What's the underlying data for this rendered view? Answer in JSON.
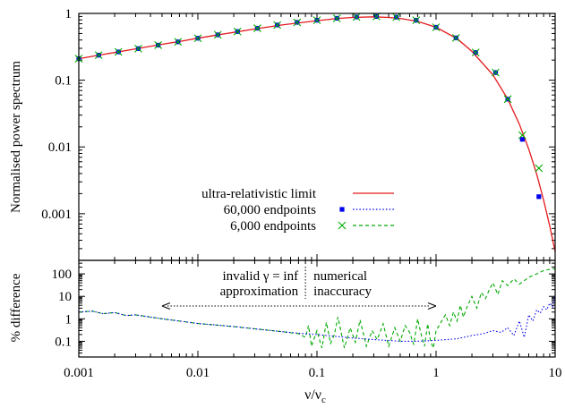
{
  "chart_data": [
    {
      "type": "line",
      "ylabel": "Normalised power spectrum",
      "xscale": "log",
      "yscale": "log",
      "xlim": [
        0.001,
        10
      ],
      "ylim": [
        0.0002,
        1
      ],
      "x_ticks": [
        "0.001",
        "0.01",
        "0.1",
        "1",
        "10"
      ],
      "y_ticks": [
        {
          "value": 1,
          "label": "1"
        },
        {
          "value": 0.1,
          "label": "0.1"
        },
        {
          "value": 0.01,
          "label": "0.01"
        },
        {
          "value": 0.001,
          "label": "0.001"
        }
      ],
      "legend_position": "center-left",
      "series": [
        {
          "name": "ultra-relativistic limit",
          "color": "#e41a1c",
          "style": "line",
          "x": [
            0.001,
            0.0015,
            0.002,
            0.003,
            0.005,
            0.007,
            0.01,
            0.015,
            0.02,
            0.03,
            0.05,
            0.07,
            0.1,
            0.15,
            0.2,
            0.3,
            0.4,
            0.5,
            0.7,
            1,
            1.5,
            2,
            3,
            4,
            5,
            6,
            7,
            8,
            9,
            10
          ],
          "y": [
            0.21,
            0.238,
            0.26,
            0.295,
            0.345,
            0.38,
            0.425,
            0.48,
            0.52,
            0.585,
            0.67,
            0.72,
            0.78,
            0.84,
            0.87,
            0.89,
            0.87,
            0.84,
            0.76,
            0.62,
            0.42,
            0.27,
            0.12,
            0.052,
            0.022,
            0.0093,
            0.0039,
            0.0016,
            0.00066,
            0.00027
          ]
        },
        {
          "name": "60,000 endpoints",
          "color": "#0000ee",
          "style": "dotted",
          "marker": "square",
          "x": [
            0.001,
            0.00147,
            0.00215,
            0.00316,
            0.00464,
            0.00681,
            0.01,
            0.0147,
            0.0215,
            0.0316,
            0.0464,
            0.0681,
            0.1,
            0.147,
            0.215,
            0.316,
            0.464,
            0.681,
            1,
            1.47,
            2.15,
            3.16,
            4.0,
            5.3,
            7.3
          ],
          "y": [
            0.21,
            0.237,
            0.265,
            0.297,
            0.335,
            0.375,
            0.425,
            0.478,
            0.535,
            0.6,
            0.67,
            0.735,
            0.79,
            0.845,
            0.885,
            0.9,
            0.88,
            0.79,
            0.62,
            0.43,
            0.26,
            0.13,
            0.052,
            0.013,
            0.0018
          ]
        },
        {
          "name": "6,000 endpoints",
          "color": "#00aa00",
          "style": "dashed",
          "marker": "cross",
          "x": [
            0.001,
            0.00147,
            0.00215,
            0.00316,
            0.00464,
            0.00681,
            0.01,
            0.0147,
            0.0215,
            0.0316,
            0.0464,
            0.0681,
            0.1,
            0.147,
            0.215,
            0.316,
            0.464,
            0.681,
            1,
            1.47,
            2.15,
            3.16,
            4.0,
            5.3,
            7.3
          ],
          "y": [
            0.21,
            0.237,
            0.265,
            0.297,
            0.335,
            0.375,
            0.425,
            0.478,
            0.535,
            0.6,
            0.67,
            0.735,
            0.79,
            0.845,
            0.885,
            0.9,
            0.88,
            0.79,
            0.62,
            0.43,
            0.26,
            0.13,
            0.052,
            0.015,
            0.0048
          ]
        }
      ]
    },
    {
      "type": "line",
      "ylabel": "% difference",
      "xlabel": "ν/νc",
      "xscale": "log",
      "yscale": "log",
      "xlim": [
        0.001,
        10
      ],
      "ylim": [
        0.02,
        400
      ],
      "x_ticks": [
        "0.001",
        "0.01",
        "0.1",
        "1",
        "10"
      ],
      "y_ticks": [
        {
          "value": 100,
          "label": "100"
        },
        {
          "value": 10,
          "label": "10"
        },
        {
          "value": 1,
          "label": "1"
        },
        {
          "value": 0.1,
          "label": "0.1"
        }
      ],
      "annotations": {
        "left": [
          "invalid γ = inf",
          "approximation"
        ],
        "right": [
          "numerical",
          "inaccuracy"
        ],
        "divider_x": 0.08,
        "arrow_from_x": 0.005,
        "arrow_to_x": 1
      },
      "series": [
        {
          "name": "60,000 endpoints",
          "color": "#0000ee",
          "style": "dotted",
          "x": [
            0.001,
            0.0013,
            0.0016,
            0.002,
            0.0025,
            0.003,
            0.004,
            0.005,
            0.007,
            0.01,
            0.015,
            0.02,
            0.03,
            0.05,
            0.07,
            0.1,
            0.15,
            0.2,
            0.3,
            0.5,
            0.7,
            1,
            1.5,
            2,
            2.5,
            3,
            3.5,
            4,
            4.5,
            5,
            5.5,
            6,
            6.5,
            7,
            7.5,
            8,
            8.5,
            9,
            9.5,
            10
          ],
          "y": [
            2.0,
            2.2,
            1.7,
            1.9,
            1.4,
            1.5,
            1.2,
            1.0,
            0.8,
            0.62,
            0.52,
            0.45,
            0.36,
            0.27,
            0.23,
            0.2,
            0.16,
            0.14,
            0.12,
            0.1,
            0.1,
            0.11,
            0.13,
            0.18,
            0.22,
            0.3,
            0.25,
            0.4,
            0.18,
            0.8,
            0.15,
            1.5,
            0.8,
            2.5,
            1.8,
            3.5,
            2.5,
            5,
            3.5,
            12
          ]
        },
        {
          "name": "6,000 endpoints",
          "color": "#00aa00",
          "style": "dashed",
          "x": [
            0.001,
            0.0013,
            0.0016,
            0.002,
            0.0025,
            0.003,
            0.004,
            0.005,
            0.007,
            0.01,
            0.015,
            0.02,
            0.03,
            0.05,
            0.07,
            0.08,
            0.085,
            0.09,
            0.1,
            0.11,
            0.12,
            0.13,
            0.14,
            0.15,
            0.17,
            0.19,
            0.21,
            0.23,
            0.26,
            0.29,
            0.32,
            0.36,
            0.4,
            0.45,
            0.5,
            0.55,
            0.6,
            0.65,
            0.7,
            0.75,
            0.8,
            0.85,
            0.9,
            0.95,
            1,
            1.1,
            1.2,
            1.3,
            1.4,
            1.5,
            1.6,
            1.7,
            1.8,
            2,
            2.2,
            2.4,
            2.6,
            2.8,
            3,
            3.3,
            3.6,
            4,
            4.5,
            5,
            5.5,
            6,
            7,
            8,
            9,
            10
          ],
          "y": [
            2.0,
            2.2,
            1.7,
            1.9,
            1.4,
            1.5,
            1.2,
            1.0,
            0.8,
            0.62,
            0.52,
            0.45,
            0.36,
            0.27,
            0.22,
            0.15,
            0.5,
            0.06,
            0.3,
            0.05,
            0.7,
            0.08,
            0.2,
            1.2,
            0.05,
            0.4,
            0.09,
            0.9,
            0.06,
            0.3,
            0.12,
            0.6,
            0.06,
            0.4,
            0.1,
            0.5,
            0.25,
            0.07,
            1.0,
            0.2,
            0.06,
            0.6,
            0.1,
            0.05,
            0.3,
            0.7,
            1.5,
            0.5,
            2.0,
            0.8,
            4.0,
            1.2,
            3.0,
            10,
            3.0,
            15,
            8.0,
            20,
            40,
            12,
            50,
            30,
            60,
            35,
            50,
            70,
            100,
            140,
            160,
            170
          ]
        }
      ]
    }
  ]
}
